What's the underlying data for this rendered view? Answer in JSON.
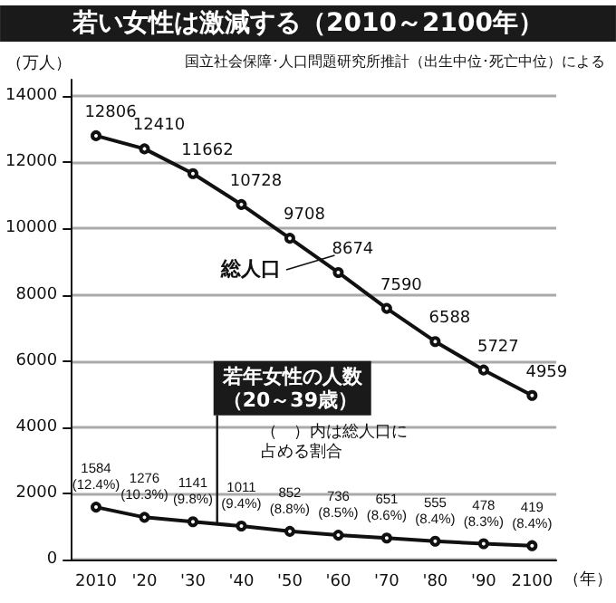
{
  "chart_data": {
    "type": "line",
    "title": "若い女性は激減する（2010～2100年）",
    "ylabel": "（万人）",
    "xlabel": "（年）",
    "annotations": [
      "国立社会保障･人口問題研究所推計（出生中位･死亡中位）による",
      "（　）内は総人口に占める割合"
    ],
    "categories": [
      "2010",
      "'20",
      "'30",
      "'40",
      "'50",
      "'60",
      "'70",
      "'80",
      "'90",
      "2100"
    ],
    "series": [
      {
        "name": "総人口",
        "color": "#111111",
        "values": [
          12806,
          12410,
          11662,
          10728,
          9708,
          8674,
          7590,
          6588,
          5727,
          4959
        ],
        "value_labels": [
          "12806",
          "12410",
          "11662",
          "10728",
          "9708",
          "8674",
          "7590",
          "6588",
          "5727",
          "4959"
        ]
      },
      {
        "name": "若年女性の人数（20～39歳）",
        "color": "#111111",
        "values": [
          1584,
          1276,
          1141,
          1011,
          852,
          736,
          651,
          555,
          478,
          419
        ],
        "value_labels": [
          "1584\n(12.4%)",
          "1276\n(10.3%)",
          "1141\n(9.8%)",
          "1011\n(9.4%)",
          "852\n(8.8%)",
          "736\n(8.5%)",
          "651\n(8.6%)",
          "555\n(8.4%)",
          "478\n(8.3%)",
          "419\n(8.4%)"
        ]
      }
    ],
    "ylim": [
      0,
      14500
    ],
    "yticks": [
      0,
      2000,
      4000,
      6000,
      8000,
      10000,
      12000,
      14000
    ],
    "grid": "y",
    "marker": "circle",
    "line_style": "solid"
  }
}
